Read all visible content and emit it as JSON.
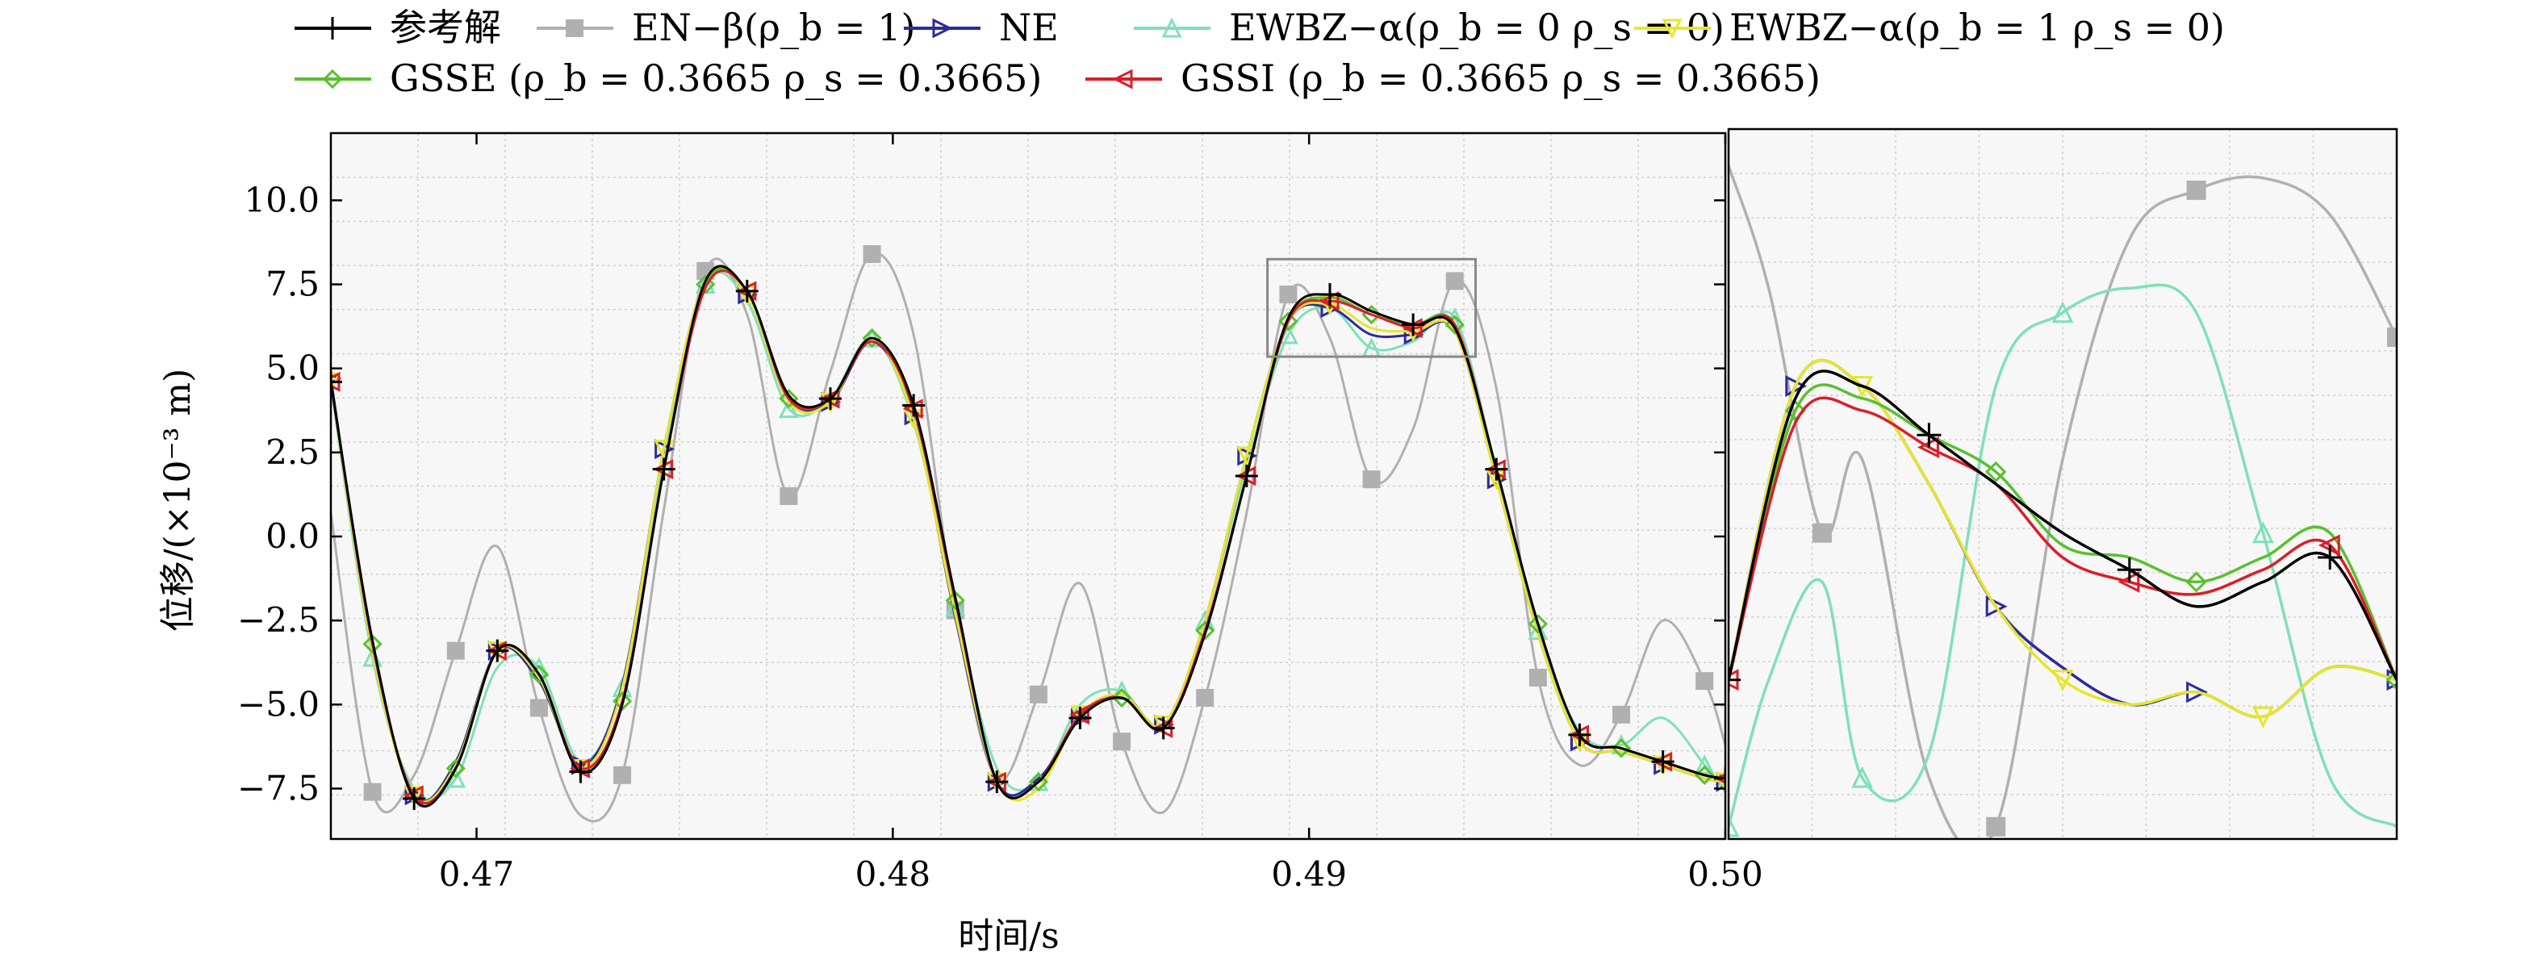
{
  "chart_data": [
    {
      "type": "line",
      "xlabel": "时间/s",
      "ylabel": "位移/(×10⁻³ m)",
      "xlim": [
        0.4665,
        0.5
      ],
      "ylim": [
        -9.0,
        12.0
      ],
      "x_ticks": [
        "0.47",
        "0.48",
        "0.49",
        "0.50"
      ],
      "y_ticks": [
        "10.0",
        "7.5",
        "5.0",
        "2.5",
        "0.0",
        "−2.5",
        "−5.0",
        "−7.5"
      ],
      "grid": true,
      "legend_position": "top",
      "series": [
        {
          "name": "参考解",
          "color": "#000000",
          "marker": "plus",
          "x": [
            0.4665,
            0.4675,
            0.4685,
            0.4695,
            0.4705,
            0.4715,
            0.4725,
            0.4735,
            0.4745,
            0.4755,
            0.4765,
            0.4775,
            0.4785,
            0.4795,
            0.4805,
            0.4815,
            0.4825,
            0.4835,
            0.4845,
            0.4855,
            0.4865,
            0.4875,
            0.4885,
            0.4895,
            0.4905,
            0.4915,
            0.4925,
            0.4935,
            0.4945,
            0.4955,
            0.4965,
            0.4975,
            0.4985,
            0.4995,
            0.5
          ],
          "y": [
            4.6,
            -3.1,
            -7.8,
            -6.9,
            -3.4,
            -4.1,
            -7.0,
            -5.0,
            2.0,
            7.6,
            7.3,
            4.2,
            4.1,
            5.9,
            3.9,
            -1.8,
            -7.3,
            -7.3,
            -5.4,
            -4.8,
            -5.7,
            -2.9,
            1.8,
            6.5,
            7.2,
            6.7,
            6.3,
            6.2,
            2.0,
            -2.6,
            -5.9,
            -6.3,
            -6.7,
            -7.1,
            -7.2
          ]
        },
        {
          "name": "EN−β(ρ_b = 1)",
          "color": "#b0b0b0",
          "marker": "square",
          "x": [
            0.4665,
            0.4675,
            0.4685,
            0.4695,
            0.4705,
            0.4715,
            0.4725,
            0.4735,
            0.4745,
            0.4755,
            0.4765,
            0.4775,
            0.4785,
            0.4795,
            0.4805,
            0.4815,
            0.4825,
            0.4835,
            0.4845,
            0.4855,
            0.4865,
            0.4875,
            0.4885,
            0.4895,
            0.4905,
            0.4915,
            0.4925,
            0.4935,
            0.4945,
            0.4955,
            0.4965,
            0.4975,
            0.4985,
            0.4995,
            0.5
          ],
          "y": [
            0.7,
            -7.6,
            -7.1,
            -3.4,
            -0.3,
            -5.1,
            -8.3,
            -7.1,
            0.8,
            7.9,
            6.6,
            1.2,
            4.9,
            8.4,
            6.0,
            -2.2,
            -7.2,
            -4.7,
            -1.4,
            -6.1,
            -8.2,
            -4.8,
            0.7,
            7.2,
            5.9,
            1.7,
            3.2,
            7.6,
            4.4,
            -4.2,
            -6.8,
            -5.3,
            -2.5,
            -4.3,
            -6.2
          ]
        },
        {
          "name": "NE",
          "color": "#2b2b9b",
          "marker": "triangle-right",
          "x": [
            0.4665,
            0.4675,
            0.4685,
            0.4695,
            0.4705,
            0.4715,
            0.4725,
            0.4735,
            0.4745,
            0.4755,
            0.4765,
            0.4775,
            0.4785,
            0.4795,
            0.4805,
            0.4815,
            0.4825,
            0.4835,
            0.4845,
            0.4855,
            0.4865,
            0.4875,
            0.4885,
            0.4895,
            0.4905,
            0.4915,
            0.4925,
            0.4935,
            0.4945,
            0.4955,
            0.4965,
            0.4975,
            0.4985,
            0.4995,
            0.5
          ],
          "y": [
            4.7,
            -3.3,
            -7.7,
            -6.7,
            -3.4,
            -4.3,
            -6.8,
            -4.4,
            2.6,
            7.6,
            7.2,
            4.1,
            4.0,
            5.8,
            3.6,
            -2.4,
            -7.3,
            -7.2,
            -5.4,
            -4.7,
            -5.6,
            -2.5,
            2.4,
            6.4,
            6.8,
            6.0,
            6.0,
            6.1,
            1.7,
            -2.9,
            -6.1,
            -6.4,
            -6.8,
            -7.2,
            -7.3
          ]
        },
        {
          "name": "EWBZ−α(ρ_b = 0 ρ_s = 0)",
          "color": "#7fe0b8",
          "marker": "triangle-up",
          "x": [
            0.4665,
            0.4675,
            0.4685,
            0.4695,
            0.4705,
            0.4715,
            0.4725,
            0.4735,
            0.4745,
            0.4755,
            0.4765,
            0.4775,
            0.4785,
            0.4795,
            0.4805,
            0.4815,
            0.4825,
            0.4835,
            0.4845,
            0.4855,
            0.4865,
            0.4875,
            0.4885,
            0.4895,
            0.4905,
            0.4915,
            0.4925,
            0.4935,
            0.4945,
            0.4955,
            0.4965,
            0.4975,
            0.4985,
            0.4995,
            0.5
          ],
          "y": [
            4.5,
            -3.6,
            -7.5,
            -7.2,
            -3.9,
            -3.9,
            -6.7,
            -4.5,
            2.2,
            7.5,
            7.0,
            3.8,
            4.1,
            5.9,
            3.4,
            -2.1,
            -6.9,
            -7.3,
            -5.0,
            -4.6,
            -5.7,
            -2.5,
            2.1,
            6.0,
            6.8,
            5.6,
            5.8,
            6.5,
            2.0,
            -2.8,
            -5.8,
            -6.2,
            -5.4,
            -6.8,
            -7.6
          ]
        },
        {
          "name": "EWBZ−α(ρ_b = 1 ρ_s = 0)",
          "color": "#e6e629",
          "marker": "triangle-down",
          "x": [
            0.4665,
            0.4675,
            0.4685,
            0.4695,
            0.4705,
            0.4715,
            0.4725,
            0.4735,
            0.4745,
            0.4755,
            0.4765,
            0.4775,
            0.4785,
            0.4795,
            0.4805,
            0.4815,
            0.4825,
            0.4835,
            0.4845,
            0.4855,
            0.4865,
            0.4875,
            0.4885,
            0.4895,
            0.4905,
            0.4915,
            0.4925,
            0.4935,
            0.4945,
            0.4955,
            0.4965,
            0.4975,
            0.4985,
            0.4995,
            0.5
          ],
          "y": [
            4.6,
            -3.4,
            -7.7,
            -6.8,
            -3.4,
            -4.2,
            -6.9,
            -4.5,
            2.6,
            7.6,
            7.2,
            4.0,
            4.0,
            5.9,
            3.5,
            -2.3,
            -7.3,
            -7.5,
            -5.3,
            -4.7,
            -5.6,
            -2.5,
            2.4,
            6.4,
            6.9,
            6.2,
            6.1,
            6.1,
            1.7,
            -2.9,
            -6.1,
            -6.4,
            -6.8,
            -7.2,
            -7.3
          ]
        },
        {
          "name": "GSSE (ρ_b = 0.3665 ρ_s = 0.3665)",
          "color": "#5bbf2f",
          "marker": "diamond",
          "x": [
            0.4665,
            0.4675,
            0.4685,
            0.4695,
            0.4705,
            0.4715,
            0.4725,
            0.4735,
            0.4745,
            0.4755,
            0.4765,
            0.4775,
            0.4785,
            0.4795,
            0.4805,
            0.4815,
            0.4825,
            0.4835,
            0.4845,
            0.4855,
            0.4865,
            0.4875,
            0.4885,
            0.4895,
            0.4905,
            0.4915,
            0.4925,
            0.4935,
            0.4945,
            0.4955,
            0.4965,
            0.4975,
            0.4985,
            0.4995,
            0.5
          ],
          "y": [
            4.6,
            -3.2,
            -7.7,
            -6.9,
            -3.4,
            -4.1,
            -6.9,
            -4.9,
            2.0,
            7.5,
            7.3,
            4.1,
            4.1,
            5.9,
            3.8,
            -1.9,
            -7.3,
            -7.3,
            -5.3,
            -4.8,
            -5.7,
            -2.8,
            1.8,
            6.4,
            7.1,
            6.6,
            6.3,
            6.3,
            2.0,
            -2.6,
            -5.9,
            -6.3,
            -6.7,
            -7.1,
            -7.2
          ]
        },
        {
          "name": "GSSI (ρ_b = 0.3665 ρ_s = 0.3665)",
          "color": "#d91f2a",
          "marker": "triangle-left",
          "x": [
            0.4665,
            0.4675,
            0.4685,
            0.4695,
            0.4705,
            0.4715,
            0.4725,
            0.4735,
            0.4745,
            0.4755,
            0.4765,
            0.4775,
            0.4785,
            0.4795,
            0.4805,
            0.4815,
            0.4825,
            0.4835,
            0.4845,
            0.4855,
            0.4865,
            0.4875,
            0.4885,
            0.4895,
            0.4905,
            0.4915,
            0.4925,
            0.4935,
            0.4945,
            0.4955,
            0.4965,
            0.4975,
            0.4985,
            0.4995,
            0.5
          ],
          "y": [
            4.6,
            -3.2,
            -7.7,
            -6.9,
            -3.4,
            -4.1,
            -6.9,
            -4.9,
            2.0,
            7.4,
            7.3,
            4.1,
            4.1,
            5.8,
            3.8,
            -1.9,
            -7.3,
            -7.3,
            -5.3,
            -4.8,
            -5.7,
            -2.8,
            1.8,
            6.4,
            7.0,
            6.6,
            6.2,
            6.3,
            2.0,
            -2.6,
            -5.9,
            -6.3,
            -6.7,
            -7.1,
            -7.2
          ]
        }
      ]
    },
    {
      "type": "line",
      "note_inset": "magnified view",
      "xlim": [
        0.489,
        0.494
      ],
      "ylim": [
        5.35,
        8.25
      ],
      "grid": true,
      "series": [
        {
          "name": "参考解",
          "x": [
            0.489,
            0.4895,
            0.49,
            0.4905,
            0.491,
            0.4915,
            0.492,
            0.4925,
            0.493,
            0.4935,
            0.494
          ],
          "y": [
            6.0,
            7.15,
            7.2,
            7.0,
            6.8,
            6.6,
            6.45,
            6.3,
            6.4,
            6.5,
            6.0
          ]
        },
        {
          "name": "EN−β(ρ_b = 1)",
          "x": [
            0.489,
            0.4893,
            0.4897,
            0.49,
            0.4905,
            0.491,
            0.4915,
            0.492,
            0.4925,
            0.493,
            0.4935,
            0.494
          ],
          "y": [
            8.1,
            7.6,
            6.6,
            6.9,
            5.6,
            5.4,
            6.9,
            7.8,
            8.0,
            8.05,
            7.9,
            7.4
          ]
        },
        {
          "name": "NE",
          "x": [
            0.489,
            0.4895,
            0.49,
            0.4905,
            0.491,
            0.4915,
            0.492,
            0.4925,
            0.493,
            0.4935,
            0.494
          ],
          "y": [
            6.0,
            7.2,
            7.2,
            6.8,
            6.3,
            6.05,
            5.9,
            5.95,
            5.85,
            6.05,
            6.0
          ]
        },
        {
          "name": "EWBZ−α(ρ_b = 0 ρ_s = 0)",
          "x": [
            0.489,
            0.4893,
            0.4897,
            0.49,
            0.4905,
            0.491,
            0.4915,
            0.492,
            0.4925,
            0.493,
            0.4935,
            0.494
          ],
          "y": [
            5.4,
            6.0,
            6.4,
            5.6,
            5.7,
            7.2,
            7.5,
            7.6,
            7.5,
            6.6,
            5.6,
            5.4
          ]
        },
        {
          "name": "EWBZ−α(ρ_b = 1 ρ_s = 0)",
          "x": [
            0.489,
            0.4895,
            0.49,
            0.4905,
            0.491,
            0.4915,
            0.492,
            0.4925,
            0.493,
            0.4935,
            0.494
          ],
          "y": [
            6.0,
            7.2,
            7.2,
            6.8,
            6.3,
            6.0,
            5.9,
            5.95,
            5.85,
            6.05,
            6.0
          ]
        },
        {
          "name": "GSSE (ρ_b = 0.3665 ρ_s = 0.3665)",
          "x": [
            0.489,
            0.4895,
            0.49,
            0.4905,
            0.491,
            0.4915,
            0.492,
            0.4925,
            0.493,
            0.4935,
            0.494
          ],
          "y": [
            6.0,
            7.1,
            7.15,
            7.0,
            6.85,
            6.55,
            6.5,
            6.4,
            6.5,
            6.6,
            6.0
          ]
        },
        {
          "name": "GSSI (ρ_b = 0.3665 ρ_s = 0.3665)",
          "x": [
            0.489,
            0.4895,
            0.49,
            0.4905,
            0.491,
            0.4915,
            0.492,
            0.4925,
            0.493,
            0.4935,
            0.494
          ],
          "y": [
            6.0,
            7.05,
            7.1,
            6.95,
            6.8,
            6.5,
            6.4,
            6.35,
            6.45,
            6.55,
            6.0
          ]
        }
      ]
    }
  ],
  "legend": {
    "entries": [
      {
        "label": "参考解",
        "color": "#000000",
        "marker": "plus"
      },
      {
        "label": "EN−β(ρ_b = 1)",
        "color": "#b0b0b0",
        "marker": "square"
      },
      {
        "label": "NE",
        "color": "#2b2b9b",
        "marker": "triangle-right"
      },
      {
        "label": "EWBZ−α(ρ_b = 0 ρ_s = 0)",
        "color": "#7fe0b8",
        "marker": "triangle-up"
      },
      {
        "label": "EWBZ−α(ρ_b = 1 ρ_s = 0)",
        "color": "#e6e629",
        "marker": "triangle-down"
      },
      {
        "label": "GSSE (ρ_b = 0.3665 ρ_s = 0.3665)",
        "color": "#5bbf2f",
        "marker": "diamond"
      },
      {
        "label": "GSSI (ρ_b = 0.3665 ρ_s = 0.3665)",
        "color": "#d91f2a",
        "marker": "triangle-left"
      }
    ]
  }
}
